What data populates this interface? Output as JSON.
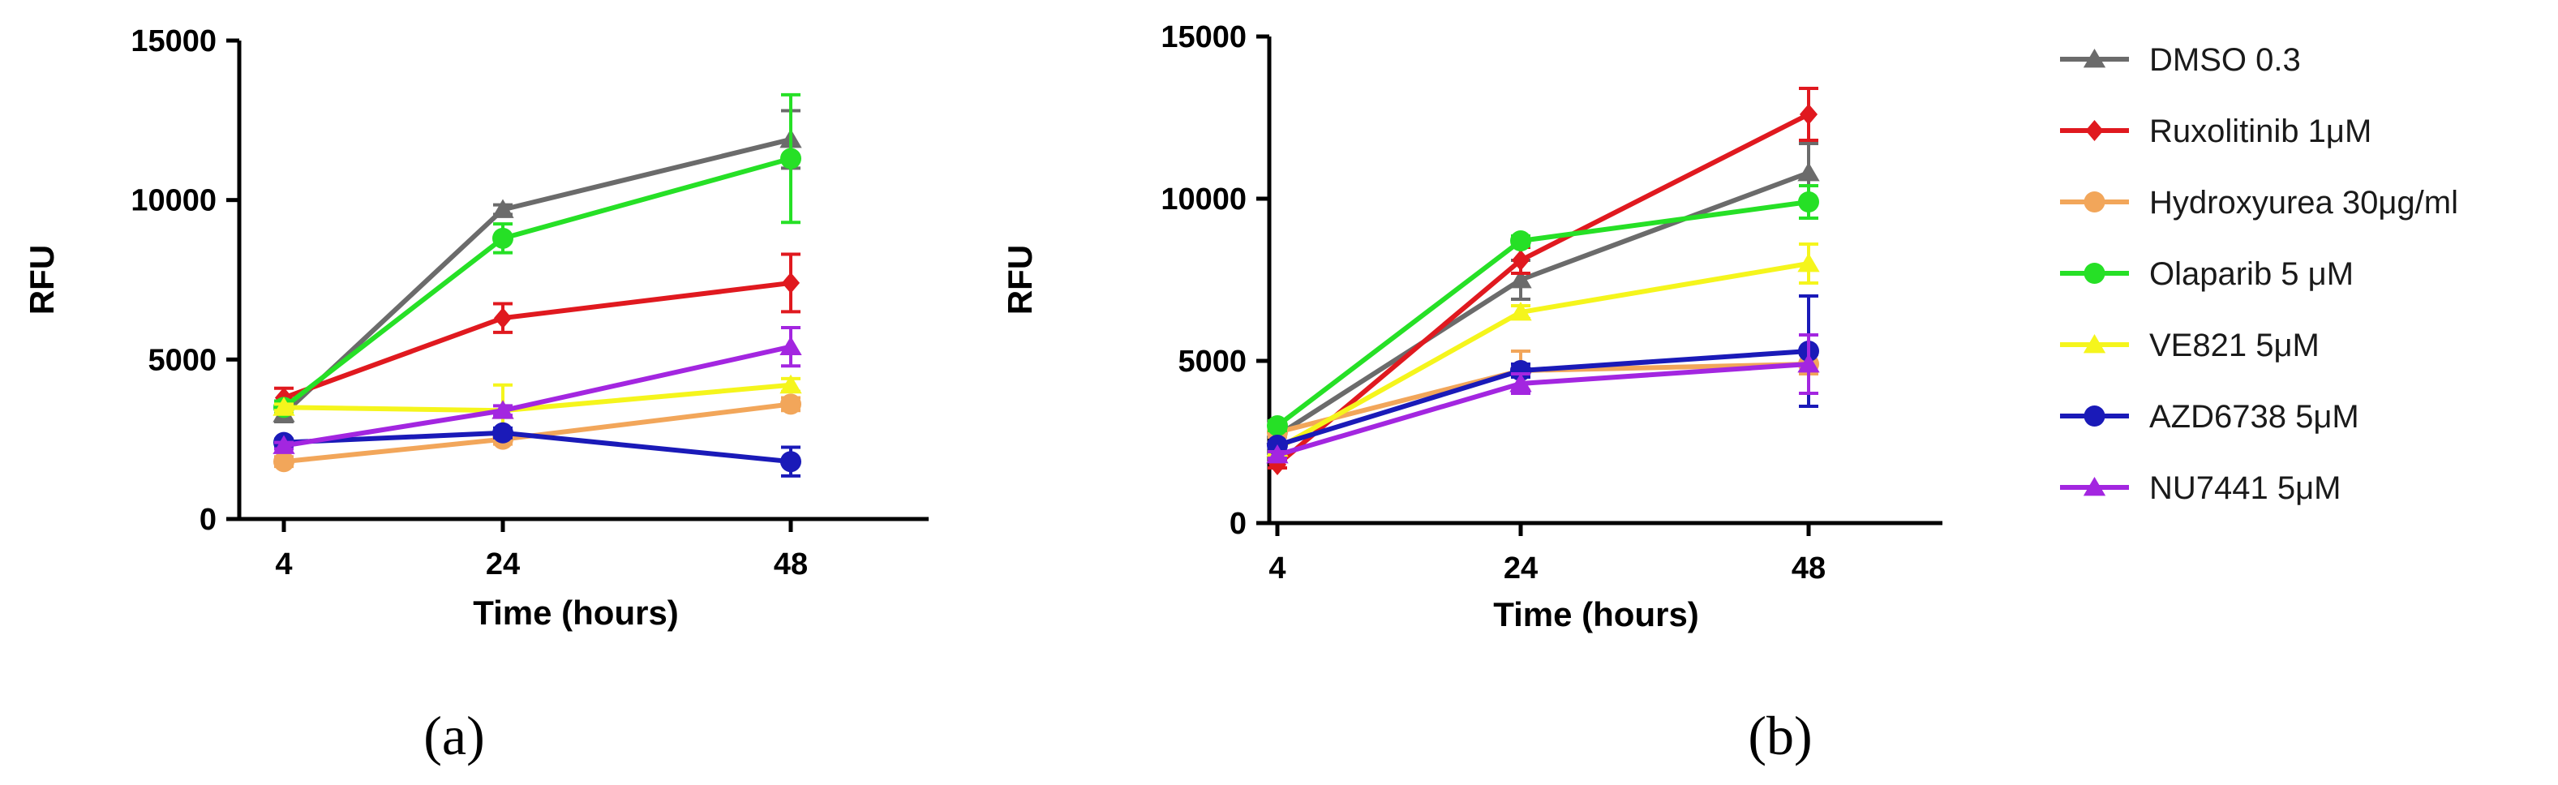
{
  "series_styles": [
    {
      "name": "DMSO 0.3",
      "color": "#6b6b6b",
      "marker": "triangle"
    },
    {
      "name": "Ruxolitinib 1μM",
      "color": "#e0191f",
      "marker": "diamond"
    },
    {
      "name": "Hydroxyurea 30μg/ml",
      "color": "#f2a65a",
      "marker": "circle"
    },
    {
      "name": "Olaparib 5 μM",
      "color": "#26e026",
      "marker": "circle"
    },
    {
      "name": "VE821 5μM",
      "color": "#f5f51c",
      "marker": "triangle"
    },
    {
      "name": "AZD6738 5μM",
      "color": "#1a1ab8",
      "marker": "circle"
    },
    {
      "name": "NU7441 5μM",
      "color": "#a326e0",
      "marker": "triangle"
    }
  ],
  "legend": {
    "entries": [
      "DMSO 0.3",
      "Ruxolitinib 1μM",
      "Hydroxyurea 30μg/ml",
      "Olaparib 5 μM",
      "VE821 5μM",
      "AZD6738 5μM",
      "NU7441 5μM"
    ]
  },
  "chart_data": [
    {
      "type": "line",
      "panel_label": "(a)",
      "title": "",
      "xlabel": "Time (hours)",
      "ylabel": "RFU",
      "x": [
        4,
        24,
        48
      ],
      "x_tick_labels": [
        "4",
        "24",
        "48"
      ],
      "y_tick_labels": [
        "0",
        "5000",
        "10000",
        "15000"
      ],
      "ylim": [
        0,
        15000
      ],
      "series": [
        {
          "name": "DMSO 0.3",
          "values": [
            3300,
            9700,
            11900
          ],
          "errors": [
            250,
            150,
            900
          ]
        },
        {
          "name": "Ruxolitinib 1μM",
          "values": [
            3800,
            6300,
            7400
          ],
          "errors": [
            300,
            450,
            900
          ]
        },
        {
          "name": "Hydroxyurea 30μg/ml",
          "values": [
            1800,
            2500,
            3600
          ],
          "errors": [
            150,
            150,
            200
          ]
        },
        {
          "name": "Olaparib 5 μM",
          "values": [
            3500,
            8800,
            11300
          ],
          "errors": [
            200,
            450,
            2000
          ]
        },
        {
          "name": "VE821 5μM",
          "values": [
            3500,
            3400,
            4200
          ],
          "errors": [
            100,
            800,
            200
          ]
        },
        {
          "name": "AZD6738 5μM",
          "values": [
            2400,
            2700,
            1800
          ],
          "errors": [
            100,
            150,
            450
          ]
        },
        {
          "name": "NU7441 5μM",
          "values": [
            2300,
            3400,
            5400
          ],
          "errors": [
            100,
            150,
            600
          ]
        }
      ]
    },
    {
      "type": "line",
      "panel_label": "(b)",
      "title": "",
      "xlabel": "Time (hours)",
      "ylabel": "RFU",
      "x": [
        4,
        24,
        48
      ],
      "x_tick_labels": [
        "4",
        "24",
        "48"
      ],
      "y_tick_labels": [
        "0",
        "5000",
        "10000",
        "15000"
      ],
      "ylim": [
        0,
        15000
      ],
      "series": [
        {
          "name": "DMSO 0.3",
          "values": [
            2700,
            7500,
            10800
          ],
          "errors": [
            200,
            600,
            900
          ]
        },
        {
          "name": "Ruxolitinib 1μM",
          "values": [
            1800,
            8100,
            12600
          ],
          "errors": [
            100,
            400,
            800
          ]
        },
        {
          "name": "Hydroxyurea 30μg/ml",
          "values": [
            2800,
            4700,
            4900
          ],
          "errors": [
            150,
            600,
            300
          ]
        },
        {
          "name": "Olaparib 5 μM",
          "values": [
            3000,
            8700,
            9900
          ],
          "errors": [
            150,
            150,
            500
          ]
        },
        {
          "name": "VE821 5μM",
          "values": [
            2300,
            6500,
            8000
          ],
          "errors": [
            150,
            200,
            600
          ]
        },
        {
          "name": "AZD6738 5μM",
          "values": [
            2400,
            4700,
            5300
          ],
          "errors": [
            100,
            200,
            1700
          ]
        },
        {
          "name": "NU7441 5μM",
          "values": [
            2100,
            4300,
            4900
          ],
          "errors": [
            100,
            300,
            900
          ]
        }
      ]
    }
  ]
}
